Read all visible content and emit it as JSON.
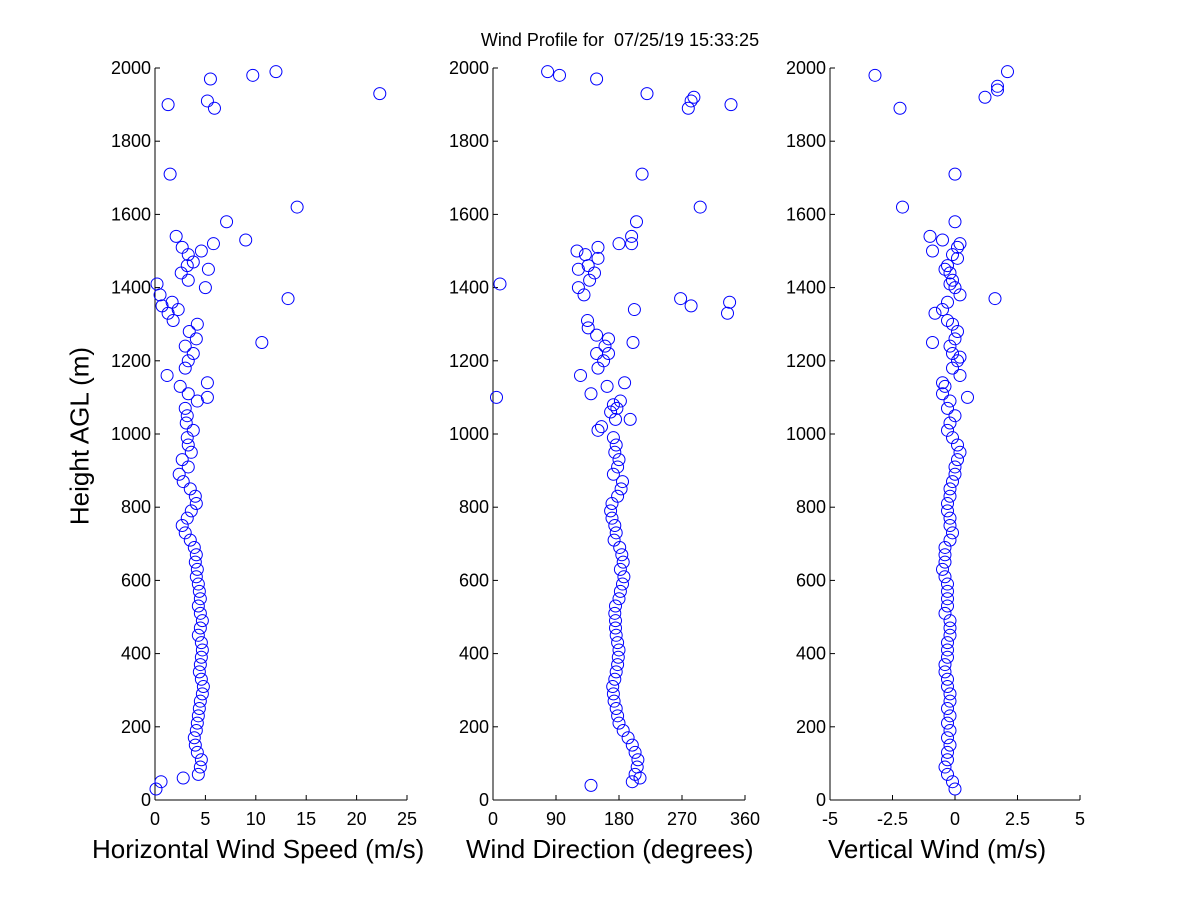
{
  "figure": {
    "title": "Wind Profile for  07/25/19 15:33:25",
    "ylabel": "Height AGL (m)"
  },
  "colors": {
    "marker": "#0000ff",
    "axis": "#000000",
    "background": "#ffffff"
  },
  "chart_data": [
    {
      "type": "scatter",
      "xlabel": "Horizontal Wind Speed (m/s)",
      "ylabel": "Height AGL (m)",
      "xlim": [
        0,
        25
      ],
      "ylim": [
        0,
        2000
      ],
      "xticks": [
        "0",
        "5",
        "10",
        "15",
        "20",
        "25"
      ],
      "yticks": [
        "0",
        "200",
        "400",
        "600",
        "800",
        "1000",
        "1200",
        "1400",
        "1600",
        "1800",
        "2000"
      ],
      "grid": false,
      "marker": "open-circle",
      "points": [
        [
          0.1,
          30
        ],
        [
          0.6,
          50
        ],
        [
          2.8,
          60
        ],
        [
          4.3,
          70
        ],
        [
          4.5,
          90
        ],
        [
          4.6,
          110
        ],
        [
          4.2,
          130
        ],
        [
          4.0,
          150
        ],
        [
          3.9,
          170
        ],
        [
          4.1,
          190
        ],
        [
          4.2,
          210
        ],
        [
          4.3,
          230
        ],
        [
          4.4,
          250
        ],
        [
          4.5,
          270
        ],
        [
          4.7,
          290
        ],
        [
          4.8,
          310
        ],
        [
          4.6,
          330
        ],
        [
          4.4,
          350
        ],
        [
          4.5,
          370
        ],
        [
          4.6,
          390
        ],
        [
          4.7,
          410
        ],
        [
          4.6,
          430
        ],
        [
          4.3,
          450
        ],
        [
          4.5,
          470
        ],
        [
          4.7,
          490
        ],
        [
          4.5,
          510
        ],
        [
          4.3,
          530
        ],
        [
          4.5,
          550
        ],
        [
          4.4,
          570
        ],
        [
          4.3,
          590
        ],
        [
          4.1,
          610
        ],
        [
          4.2,
          630
        ],
        [
          4.0,
          650
        ],
        [
          4.1,
          670
        ],
        [
          3.9,
          690
        ],
        [
          3.5,
          710
        ],
        [
          3.0,
          730
        ],
        [
          2.7,
          750
        ],
        [
          3.2,
          770
        ],
        [
          3.6,
          790
        ],
        [
          4.1,
          810
        ],
        [
          4.0,
          830
        ],
        [
          3.5,
          850
        ],
        [
          2.8,
          870
        ],
        [
          2.4,
          890
        ],
        [
          3.3,
          910
        ],
        [
          2.7,
          930
        ],
        [
          3.6,
          950
        ],
        [
          3.3,
          970
        ],
        [
          3.2,
          990
        ],
        [
          3.8,
          1010
        ],
        [
          3.1,
          1030
        ],
        [
          3.2,
          1050
        ],
        [
          3.0,
          1070
        ],
        [
          4.2,
          1090
        ],
        [
          5.2,
          1100
        ],
        [
          3.3,
          1110
        ],
        [
          2.5,
          1130
        ],
        [
          5.2,
          1140
        ],
        [
          1.2,
          1160
        ],
        [
          3.0,
          1180
        ],
        [
          3.3,
          1200
        ],
        [
          3.8,
          1220
        ],
        [
          3.0,
          1240
        ],
        [
          10.6,
          1250
        ],
        [
          4.1,
          1260
        ],
        [
          3.4,
          1280
        ],
        [
          4.2,
          1300
        ],
        [
          1.8,
          1310
        ],
        [
          1.3,
          1330
        ],
        [
          2.3,
          1340
        ],
        [
          0.7,
          1350
        ],
        [
          1.7,
          1360
        ],
        [
          13.2,
          1370
        ],
        [
          0.5,
          1380
        ],
        [
          5.0,
          1400
        ],
        [
          0.2,
          1410
        ],
        [
          3.3,
          1420
        ],
        [
          2.6,
          1440
        ],
        [
          5.3,
          1450
        ],
        [
          3.2,
          1460
        ],
        [
          3.8,
          1470
        ],
        [
          3.3,
          1490
        ],
        [
          4.6,
          1500
        ],
        [
          2.7,
          1510
        ],
        [
          5.8,
          1520
        ],
        [
          9.0,
          1530
        ],
        [
          2.1,
          1540
        ],
        [
          7.1,
          1580
        ],
        [
          14.1,
          1620
        ],
        [
          1.5,
          1710
        ],
        [
          5.9,
          1890
        ],
        [
          1.3,
          1900
        ],
        [
          5.2,
          1910
        ],
        [
          22.3,
          1930
        ],
        [
          5.5,
          1970
        ],
        [
          9.7,
          1980
        ],
        [
          12.0,
          1990
        ]
      ]
    },
    {
      "type": "scatter",
      "xlabel": "Wind Direction (degrees)",
      "xlim": [
        0,
        360
      ],
      "ylim": [
        0,
        2000
      ],
      "xticks": [
        "0",
        "90",
        "180",
        "270",
        "360"
      ],
      "yticks": [
        "0",
        "200",
        "400",
        "600",
        "800",
        "1000",
        "1200",
        "1400",
        "1600",
        "1800",
        "2000"
      ],
      "grid": false,
      "marker": "open-circle",
      "points": [
        [
          140,
          40
        ],
        [
          199,
          50
        ],
        [
          210,
          60
        ],
        [
          203,
          70
        ],
        [
          206,
          90
        ],
        [
          207,
          110
        ],
        [
          203,
          130
        ],
        [
          199,
          150
        ],
        [
          193,
          170
        ],
        [
          186,
          190
        ],
        [
          180,
          210
        ],
        [
          178,
          230
        ],
        [
          176,
          250
        ],
        [
          173,
          270
        ],
        [
          172,
          290
        ],
        [
          171,
          310
        ],
        [
          174,
          330
        ],
        [
          176,
          350
        ],
        [
          178,
          370
        ],
        [
          179,
          390
        ],
        [
          180,
          410
        ],
        [
          178,
          430
        ],
        [
          176,
          450
        ],
        [
          175,
          470
        ],
        [
          175,
          490
        ],
        [
          174,
          510
        ],
        [
          175,
          530
        ],
        [
          180,
          550
        ],
        [
          182,
          570
        ],
        [
          185,
          590
        ],
        [
          187,
          610
        ],
        [
          182,
          630
        ],
        [
          186,
          650
        ],
        [
          184,
          670
        ],
        [
          181,
          690
        ],
        [
          173,
          710
        ],
        [
          176,
          730
        ],
        [
          174,
          750
        ],
        [
          170,
          770
        ],
        [
          168,
          790
        ],
        [
          170,
          810
        ],
        [
          178,
          830
        ],
        [
          183,
          850
        ],
        [
          185,
          870
        ],
        [
          172,
          890
        ],
        [
          178,
          910
        ],
        [
          180,
          930
        ],
        [
          174,
          950
        ],
        [
          176,
          970
        ],
        [
          172,
          990
        ],
        [
          150,
          1010
        ],
        [
          155,
          1020
        ],
        [
          175,
          1040
        ],
        [
          196,
          1040
        ],
        [
          168,
          1060
        ],
        [
          177,
          1070
        ],
        [
          182,
          1090
        ],
        [
          172,
          1080
        ],
        [
          5,
          1100
        ],
        [
          140,
          1110
        ],
        [
          188,
          1140
        ],
        [
          163,
          1130
        ],
        [
          125,
          1160
        ],
        [
          150,
          1180
        ],
        [
          158,
          1200
        ],
        [
          148,
          1220
        ],
        [
          165,
          1220
        ],
        [
          160,
          1240
        ],
        [
          200,
          1250
        ],
        [
          165,
          1260
        ],
        [
          148,
          1270
        ],
        [
          136,
          1290
        ],
        [
          135,
          1310
        ],
        [
          335,
          1330
        ],
        [
          283,
          1350
        ],
        [
          268,
          1370
        ],
        [
          338,
          1360
        ],
        [
          202,
          1340
        ],
        [
          130,
          1380
        ],
        [
          122,
          1400
        ],
        [
          10,
          1410
        ],
        [
          138,
          1420
        ],
        [
          145,
          1440
        ],
        [
          122,
          1450
        ],
        [
          136,
          1460
        ],
        [
          150,
          1480
        ],
        [
          132,
          1490
        ],
        [
          120,
          1500
        ],
        [
          150,
          1510
        ],
        [
          198,
          1520
        ],
        [
          180,
          1520
        ],
        [
          198,
          1540
        ],
        [
          205,
          1580
        ],
        [
          296,
          1620
        ],
        [
          213,
          1710
        ],
        [
          279,
          1890
        ],
        [
          340,
          1900
        ],
        [
          283,
          1910
        ],
        [
          287,
          1920
        ],
        [
          220,
          1930
        ],
        [
          148,
          1970
        ],
        [
          95,
          1980
        ],
        [
          78,
          1990
        ]
      ]
    },
    {
      "type": "scatter",
      "xlabel": "Vertical Wind (m/s)",
      "xlim": [
        -5,
        5
      ],
      "ylim": [
        0,
        2000
      ],
      "xticks": [
        "-5",
        "-2.5",
        "0",
        "2.5",
        "5"
      ],
      "yticks": [
        "0",
        "200",
        "400",
        "600",
        "800",
        "1000",
        "1200",
        "1400",
        "1600",
        "1800",
        "2000"
      ],
      "grid": false,
      "marker": "open-circle",
      "points": [
        [
          -0.0,
          30
        ],
        [
          -0.1,
          50
        ],
        [
          -0.3,
          70
        ],
        [
          -0.4,
          90
        ],
        [
          -0.3,
          110
        ],
        [
          -0.3,
          130
        ],
        [
          -0.2,
          150
        ],
        [
          -0.3,
          170
        ],
        [
          -0.2,
          190
        ],
        [
          -0.3,
          210
        ],
        [
          -0.2,
          230
        ],
        [
          -0.3,
          250
        ],
        [
          -0.2,
          270
        ],
        [
          -0.2,
          290
        ],
        [
          -0.3,
          310
        ],
        [
          -0.3,
          330
        ],
        [
          -0.4,
          350
        ],
        [
          -0.4,
          370
        ],
        [
          -0.3,
          390
        ],
        [
          -0.3,
          410
        ],
        [
          -0.3,
          430
        ],
        [
          -0.2,
          450
        ],
        [
          -0.2,
          470
        ],
        [
          -0.2,
          490
        ],
        [
          -0.4,
          510
        ],
        [
          -0.3,
          530
        ],
        [
          -0.3,
          550
        ],
        [
          -0.3,
          570
        ],
        [
          -0.3,
          590
        ],
        [
          -0.4,
          610
        ],
        [
          -0.5,
          630
        ],
        [
          -0.4,
          650
        ],
        [
          -0.4,
          670
        ],
        [
          -0.4,
          690
        ],
        [
          -0.2,
          710
        ],
        [
          -0.1,
          730
        ],
        [
          -0.2,
          750
        ],
        [
          -0.2,
          770
        ],
        [
          -0.3,
          790
        ],
        [
          -0.3,
          810
        ],
        [
          -0.2,
          830
        ],
        [
          -0.2,
          850
        ],
        [
          -0.1,
          870
        ],
        [
          -0.0,
          890
        ],
        [
          -0.0,
          910
        ],
        [
          0.1,
          930
        ],
        [
          0.2,
          950
        ],
        [
          0.1,
          970
        ],
        [
          -0.1,
          990
        ],
        [
          -0.3,
          1010
        ],
        [
          -0.2,
          1030
        ],
        [
          0.0,
          1050
        ],
        [
          -0.3,
          1070
        ],
        [
          -0.2,
          1090
        ],
        [
          0.5,
          1100
        ],
        [
          -0.5,
          1110
        ],
        [
          -0.4,
          1130
        ],
        [
          -0.5,
          1140
        ],
        [
          0.2,
          1160
        ],
        [
          -0.1,
          1180
        ],
        [
          0.1,
          1200
        ],
        [
          0.2,
          1210
        ],
        [
          -0.1,
          1220
        ],
        [
          -0.2,
          1240
        ],
        [
          -0.9,
          1250
        ],
        [
          0.0,
          1260
        ],
        [
          0.1,
          1280
        ],
        [
          -0.1,
          1300
        ],
        [
          -0.3,
          1310
        ],
        [
          -0.8,
          1330
        ],
        [
          -0.5,
          1340
        ],
        [
          -0.3,
          1360
        ],
        [
          1.6,
          1370
        ],
        [
          0.2,
          1380
        ],
        [
          0.0,
          1400
        ],
        [
          -0.2,
          1410
        ],
        [
          -0.1,
          1420
        ],
        [
          -0.2,
          1440
        ],
        [
          -0.4,
          1450
        ],
        [
          -0.3,
          1460
        ],
        [
          0.1,
          1480
        ],
        [
          -0.1,
          1490
        ],
        [
          -0.9,
          1500
        ],
        [
          0.1,
          1510
        ],
        [
          0.2,
          1520
        ],
        [
          -0.5,
          1530
        ],
        [
          -1.0,
          1540
        ],
        [
          -0.0,
          1580
        ],
        [
          -2.1,
          1620
        ],
        [
          0.0,
          1710
        ],
        [
          -2.2,
          1890
        ],
        [
          1.2,
          1920
        ],
        [
          1.7,
          1940
        ],
        [
          1.7,
          1950
        ],
        [
          -3.2,
          1980
        ],
        [
          2.1,
          1990
        ]
      ]
    }
  ]
}
